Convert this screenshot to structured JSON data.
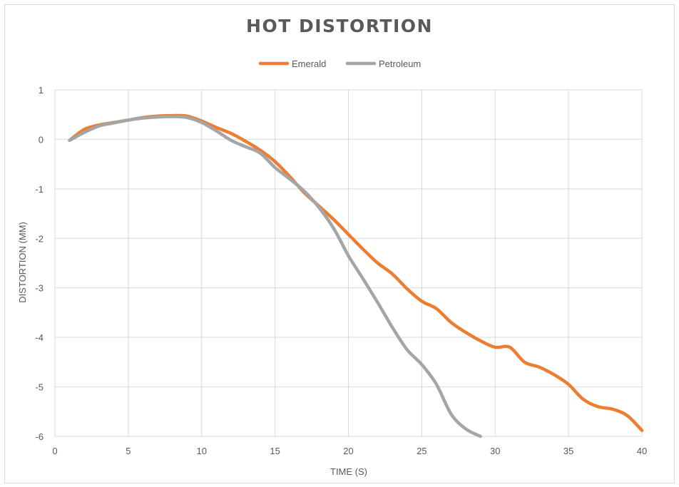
{
  "chart_data": {
    "type": "line",
    "title": "HOT DISTORTION",
    "xlabel": "TIME (S)",
    "ylabel": "DISTORTION (MM)",
    "xlim": [
      0,
      40
    ],
    "ylim": [
      -6,
      1
    ],
    "xticks": [
      0,
      5,
      10,
      15,
      20,
      25,
      30,
      35,
      40
    ],
    "yticks": [
      1,
      0,
      -1,
      -2,
      -3,
      -4,
      -5,
      -6
    ],
    "grid": true,
    "legend_position": "top",
    "series": [
      {
        "name": "Emerald",
        "color": "#ed7d31",
        "x": [
          1,
          2,
          3,
          4,
          5,
          6,
          7,
          8,
          9,
          10,
          11,
          12,
          13,
          14,
          15,
          16,
          17,
          18,
          19,
          20,
          21,
          22,
          23,
          24,
          25,
          26,
          27,
          28,
          29,
          30,
          31,
          32,
          33,
          34,
          35,
          36,
          37,
          38,
          39,
          40
        ],
        "y": [
          -0.02,
          0.2,
          0.29,
          0.34,
          0.39,
          0.44,
          0.47,
          0.48,
          0.47,
          0.37,
          0.24,
          0.12,
          -0.04,
          -0.22,
          -0.45,
          -0.75,
          -1.08,
          -1.35,
          -1.62,
          -1.92,
          -2.22,
          -2.5,
          -2.72,
          -3.02,
          -3.27,
          -3.42,
          -3.7,
          -3.9,
          -4.07,
          -4.2,
          -4.2,
          -4.5,
          -4.6,
          -4.75,
          -4.95,
          -5.25,
          -5.4,
          -5.45,
          -5.58,
          -5.88
        ]
      },
      {
        "name": "Petroleum",
        "color": "#a5a5a5",
        "x": [
          1,
          2,
          3,
          4,
          5,
          6,
          7,
          8,
          9,
          10,
          11,
          12,
          13,
          14,
          15,
          16,
          17,
          18,
          19,
          20,
          21,
          22,
          23,
          24,
          25,
          26,
          27,
          28,
          29
        ],
        "y": [
          -0.02,
          0.14,
          0.27,
          0.33,
          0.39,
          0.43,
          0.45,
          0.46,
          0.44,
          0.34,
          0.17,
          -0.02,
          -0.15,
          -0.28,
          -0.57,
          -0.8,
          -1.05,
          -1.38,
          -1.8,
          -2.35,
          -2.82,
          -3.3,
          -3.8,
          -4.25,
          -4.55,
          -4.95,
          -5.55,
          -5.85,
          -6.0
        ]
      }
    ]
  }
}
